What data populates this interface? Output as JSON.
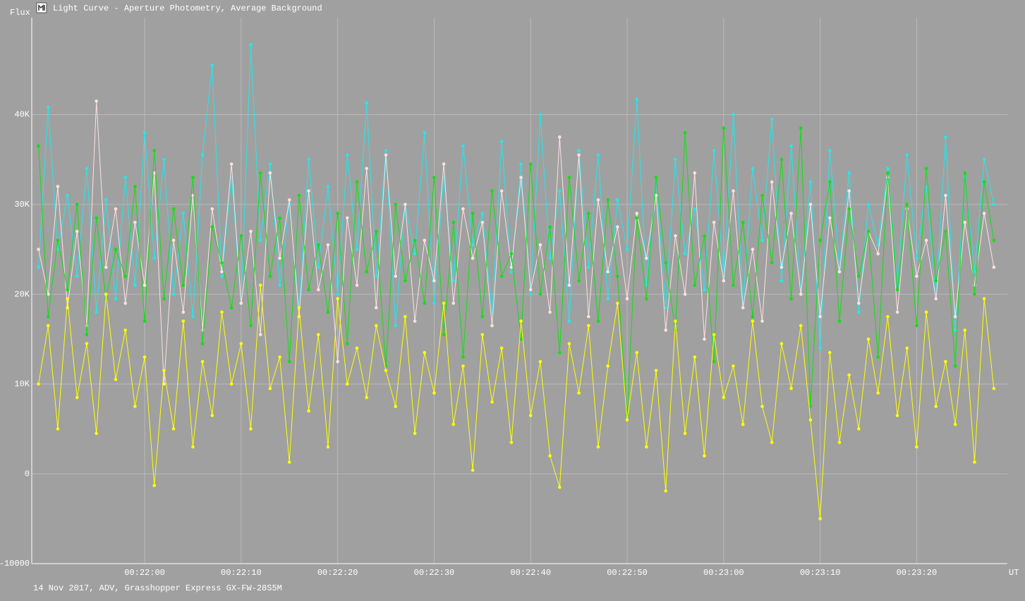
{
  "chart_data": {
    "type": "line",
    "title": "Light Curve - Aperture Photometry, Average Background",
    "y_label": "Flux",
    "x_label": "UT",
    "footer": "14 Nov 2017, ADV, Grasshopper Express GX-FW-28S5M",
    "grid": true,
    "xlim": [
      1308.3,
      1409.4
    ],
    "xticks": [
      {
        "value": 1320,
        "label": "00:22:00"
      },
      {
        "value": 1330,
        "label": "00:22:10"
      },
      {
        "value": 1340,
        "label": "00:22:20"
      },
      {
        "value": 1350,
        "label": "00:22:30"
      },
      {
        "value": 1360,
        "label": "00:22:40"
      },
      {
        "value": 1370,
        "label": "00:22:50"
      },
      {
        "value": 1380,
        "label": "00:23:00"
      },
      {
        "value": 1390,
        "label": "00:23:10"
      },
      {
        "value": 1400,
        "label": "00:23:20"
      }
    ],
    "ylim": [
      -10000,
      50800
    ],
    "yticks": [
      {
        "value": -10000,
        "label": "-10000"
      },
      0,
      {
        "value": 10000,
        "label": "10K"
      },
      {
        "value": 20000,
        "label": "20K"
      },
      {
        "value": 30000,
        "label": "30K"
      },
      {
        "value": 40000,
        "label": "40K"
      }
    ],
    "x": [
      1309,
      1310,
      1311,
      1312,
      1313,
      1314,
      1315,
      1316,
      1317,
      1318,
      1319,
      1320,
      1321,
      1322,
      1323,
      1324,
      1325,
      1326,
      1327,
      1328,
      1329,
      1330,
      1331,
      1332,
      1333,
      1334,
      1335,
      1336,
      1337,
      1338,
      1339,
      1340,
      1341,
      1342,
      1343,
      1344,
      1345,
      1346,
      1347,
      1348,
      1349,
      1350,
      1351,
      1352,
      1353,
      1354,
      1355,
      1356,
      1357,
      1358,
      1359,
      1360,
      1361,
      1362,
      1363,
      1364,
      1365,
      1366,
      1367,
      1368,
      1369,
      1370,
      1371,
      1372,
      1373,
      1374,
      1375,
      1376,
      1377,
      1378,
      1379,
      1380,
      1381,
      1382,
      1383,
      1384,
      1385,
      1386,
      1387,
      1388,
      1389,
      1390,
      1391,
      1392,
      1393,
      1394,
      1395,
      1396,
      1397,
      1398,
      1399,
      1400,
      1401,
      1402,
      1403,
      1404,
      1405,
      1406,
      1407,
      1408
    ],
    "series": [
      {
        "color": "#22e8ec",
        "values": [
          23000,
          40800,
          25000,
          31000,
          22000,
          34000,
          18000,
          30500,
          19500,
          33000,
          21000,
          38000,
          24000,
          35000,
          20000,
          29000,
          17500,
          35500,
          45500,
          22000,
          33000,
          19000,
          47800,
          26000,
          34500,
          21000,
          30000,
          18500,
          35000,
          23000,
          32000,
          20000,
          35500,
          25000,
          41300,
          22000,
          36000,
          16500,
          30000,
          24500,
          38000,
          19000,
          33000,
          21500,
          36500,
          25500,
          29000,
          18000,
          37000,
          22500,
          34500,
          20000,
          40000,
          24000,
          31500,
          17000,
          36000,
          23000,
          35500,
          19500,
          30500,
          25000,
          41700,
          21000,
          33000,
          18500,
          35000,
          24500,
          29500,
          20500,
          36000,
          22000,
          40000,
          19000,
          34000,
          26000,
          39500,
          21500,
          36500,
          20000,
          32500,
          14000,
          36000,
          23000,
          33500,
          18000,
          30000,
          25500,
          34000,
          21000,
          35500,
          24000,
          32000,
          19500,
          37500,
          16000,
          33000,
          22500,
          35000,
          30000
        ]
      },
      {
        "color": "#ffe0e0",
        "values": [
          25000,
          20000,
          32000,
          18500,
          27000,
          16500,
          41500,
          23000,
          29500,
          19000,
          28000,
          21000,
          33500,
          10000,
          26000,
          18000,
          31000,
          16000,
          29500,
          22500,
          34500,
          19000,
          27000,
          15500,
          33500,
          24000,
          30500,
          17500,
          31500,
          20500,
          25500,
          12500,
          28500,
          21000,
          34000,
          18500,
          35500,
          22000,
          30000,
          17000,
          26000,
          21500,
          34500,
          19000,
          29500,
          24000,
          28000,
          16500,
          31500,
          23000,
          33000,
          20500,
          25500,
          18000,
          37500,
          21000,
          35500,
          17500,
          30500,
          22500,
          27500,
          19500,
          29000,
          24000,
          31000,
          16000,
          26500,
          20000,
          33500,
          15000,
          28000,
          21500,
          31500,
          18500,
          25000,
          17000,
          32500,
          23000,
          29000,
          20000,
          30000,
          17500,
          28500,
          22500,
          31500,
          19000,
          27000,
          24500,
          33000,
          18000,
          29500,
          22000,
          26000,
          19500,
          31000,
          17500,
          28000,
          21000,
          29000,
          23000
        ]
      },
      {
        "color": "#10e010",
        "values": [
          36500,
          17500,
          26000,
          20500,
          30000,
          15500,
          28500,
          19500,
          25000,
          22000,
          32000,
          17000,
          36000,
          19500,
          29500,
          21000,
          33000,
          14500,
          27500,
          23500,
          18500,
          26500,
          16500,
          33500,
          22000,
          28500,
          12500,
          31000,
          20500,
          25500,
          18000,
          29000,
          14500,
          32500,
          22500,
          27000,
          12000,
          30000,
          21500,
          26000,
          19000,
          33000,
          15500,
          28000,
          13000,
          29000,
          17500,
          31500,
          22000,
          24500,
          15000,
          34500,
          20000,
          27500,
          13500,
          33000,
          21500,
          29000,
          17000,
          30500,
          22000,
          6500,
          28500,
          19500,
          33000,
          23500,
          16000,
          38000,
          21000,
          26500,
          12500,
          38500,
          21000,
          28000,
          17500,
          31000,
          23500,
          35000,
          19500,
          38500,
          7500,
          26000,
          32500,
          17000,
          29500,
          22000,
          27000,
          13000,
          33500,
          20500,
          30000,
          16500,
          34000,
          21500,
          27000,
          12000,
          33500,
          20000,
          32500,
          26000
        ]
      },
      {
        "color": "#ffff00",
        "values": [
          10000,
          16500,
          5000,
          19500,
          8500,
          14500,
          4500,
          20000,
          10500,
          16000,
          7500,
          13000,
          -1300,
          11500,
          5000,
          17000,
          3000,
          12500,
          6500,
          18000,
          10000,
          14500,
          5000,
          21000,
          9500,
          13000,
          1300,
          18500,
          7000,
          15500,
          3000,
          19500,
          10000,
          14000,
          8500,
          16500,
          11500,
          7500,
          17500,
          4500,
          13500,
          9000,
          19000,
          5500,
          12000,
          400,
          15500,
          8000,
          14000,
          3500,
          17000,
          6500,
          12500,
          2000,
          -1500,
          14500,
          9000,
          16500,
          3000,
          12000,
          19000,
          6000,
          13500,
          3000,
          11500,
          -1900,
          17000,
          4500,
          13000,
          2000,
          15500,
          8500,
          12000,
          5500,
          17000,
          7500,
          3500,
          14500,
          9500,
          16500,
          6000,
          -5000,
          13500,
          3500,
          11000,
          5000,
          15000,
          9000,
          17500,
          6500,
          14000,
          3000,
          18000,
          7500,
          12500,
          5500,
          16000,
          1300,
          19500,
          9500
        ]
      }
    ]
  }
}
